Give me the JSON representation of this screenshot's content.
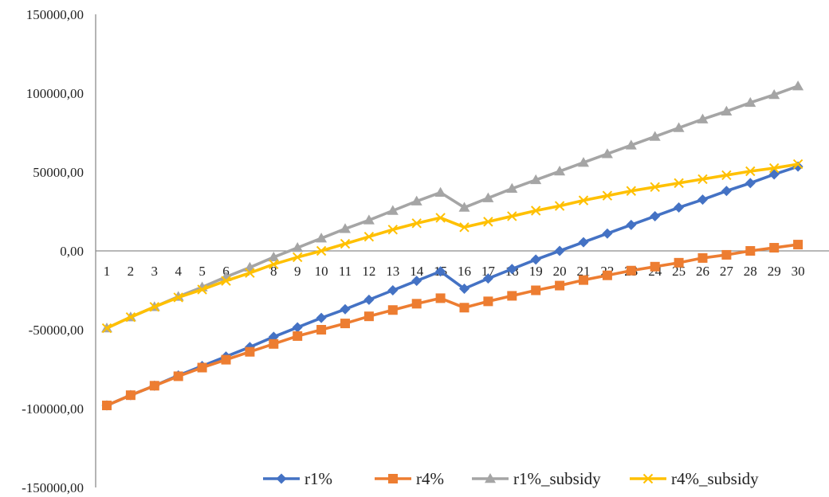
{
  "chart_data": {
    "type": "line",
    "title": "",
    "xlabel": "",
    "ylabel": "",
    "ylim": [
      -150000,
      150000
    ],
    "y_ticks": [
      150000,
      100000,
      50000,
      0,
      -50000,
      -100000,
      -150000
    ],
    "y_tick_labels": [
      "150000,00",
      "100000,00",
      "50000,00",
      "0,00",
      "-50000,00",
      "-100000,00",
      "-150000,00"
    ],
    "x": [
      "1",
      "2",
      "3",
      "4",
      "5",
      "6",
      "7",
      "8",
      "9",
      "10",
      "11",
      "12",
      "13",
      "14",
      "15",
      "16",
      "17",
      "18",
      "19",
      "20",
      "21",
      "22",
      "23",
      "24",
      "25",
      "26",
      "27",
      "28",
      "29",
      "30"
    ],
    "grid": false,
    "legend_position": "bottom-right",
    "series": [
      {
        "name": "r1%",
        "color": "#4472C4",
        "marker": "diamond",
        "values": [
          -98000,
          -91500,
          -85500,
          -79000,
          -73000,
          -67000,
          -61000,
          -54500,
          -48500,
          -42500,
          -37000,
          -31000,
          -25000,
          -19000,
          -13000,
          -24000,
          -17500,
          -11500,
          -5500,
          0,
          5500,
          11000,
          16500,
          22000,
          27500,
          32500,
          38000,
          43000,
          48500,
          53500
        ]
      },
      {
        "name": "r4%",
        "color": "#ED7D31",
        "marker": "square",
        "values": [
          -98000,
          -91500,
          -85500,
          -79500,
          -74000,
          -69000,
          -64000,
          -59000,
          -54000,
          -50000,
          -46000,
          -41500,
          -37500,
          -33500,
          -30000,
          -36000,
          -32000,
          -28500,
          -25000,
          -22000,
          -18500,
          -15500,
          -12500,
          -10000,
          -7500,
          -4500,
          -2500,
          0,
          2000,
          4000
        ]
      },
      {
        "name": "r1%_subsidy",
        "color": "#A5A5A5",
        "marker": "triangle",
        "values": [
          -49000,
          -42000,
          -35500,
          -29000,
          -23000,
          -16500,
          -10500,
          -4000,
          2000,
          8000,
          14000,
          19500,
          25500,
          31500,
          37000,
          27500,
          33500,
          39500,
          45000,
          50500,
          56000,
          61500,
          67000,
          72500,
          78000,
          83500,
          88500,
          94000,
          99000,
          104500
        ]
      },
      {
        "name": "r4%_subsidy",
        "color": "#FFC000",
        "marker": "x",
        "values": [
          -49000,
          -42000,
          -35500,
          -29500,
          -24500,
          -19000,
          -14000,
          -8500,
          -4000,
          0,
          4500,
          9000,
          13500,
          17500,
          21000,
          15000,
          18500,
          22000,
          25500,
          28500,
          32000,
          35000,
          38000,
          40500,
          43000,
          45500,
          48000,
          50500,
          52500,
          55000
        ]
      }
    ]
  }
}
